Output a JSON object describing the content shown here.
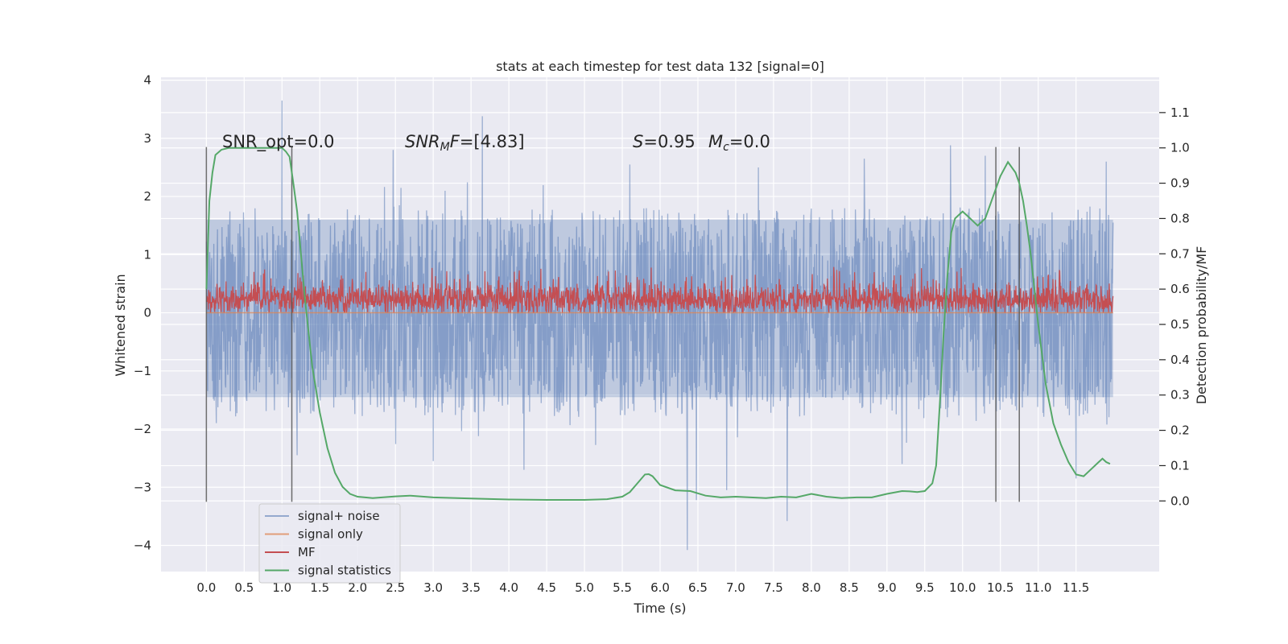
{
  "chart_data": {
    "type": "line",
    "title": "stats at each timestep for test data 132 [signal=0]",
    "xlabel": "Time (s)",
    "ylabel": "Whitened strain",
    "ylabel_right": "Detection probability/MF",
    "xlim": [
      -0.6,
      12.6
    ],
    "ylim": [
      -4.45,
      4.05
    ],
    "ylim_right": [
      -0.2,
      1.2
    ],
    "x_ticks": [
      0.0,
      0.5,
      1.0,
      1.5,
      2.0,
      2.5,
      3.0,
      3.5,
      4.0,
      4.5,
      5.0,
      5.5,
      6.0,
      6.5,
      7.0,
      7.5,
      8.0,
      8.5,
      9.0,
      9.5,
      10.0,
      10.5,
      11.0,
      11.5
    ],
    "x_tick_labels": [
      "0.0",
      "0.5",
      "1.0",
      "1.5",
      "2.0",
      "2.5",
      "3.0",
      "3.5",
      "4.0",
      "4.5",
      "5.0",
      "5.5",
      "6.0",
      "6.5",
      "7.0",
      "7.5",
      "8.0",
      "8.5",
      "9.0",
      "9.5",
      "10.0",
      "10.5",
      "11.0",
      "11.5"
    ],
    "y_ticks": [
      -4,
      -3,
      -2,
      -1,
      0,
      1,
      2,
      3,
      4
    ],
    "y_tick_labels": [
      "−4",
      "−3",
      "−2",
      "−1",
      "0",
      "1",
      "2",
      "3",
      "4"
    ],
    "y_right_ticks": [
      0.0,
      0.1,
      0.2,
      0.3,
      0.4,
      0.5,
      0.6,
      0.7,
      0.8,
      0.9,
      1.0,
      1.1
    ],
    "y_right_tick_labels": [
      "0.0",
      "0.1",
      "0.2",
      "0.3",
      "0.4",
      "0.5",
      "0.6",
      "0.7",
      "0.8",
      "0.9",
      "1.0",
      "1.1"
    ],
    "grid": true,
    "legend_position": "lower-left",
    "annotations": {
      "snr_opt": "SNR_opt=0.0",
      "snr_mf_base": "SNR",
      "snr_mf_sub": "M",
      "snr_mf_rest": "F=[4.83]",
      "s_label": "S",
      "s_value": "=0.95",
      "mc_label": "M",
      "mc_sub": "c",
      "mc_value": "=0.0"
    },
    "vertical_markers": [
      {
        "x": 0.0,
        "y_range": [
          -3.25,
          2.85
        ]
      },
      {
        "x": 1.13,
        "y_range": [
          -3.25,
          2.85
        ]
      },
      {
        "x": 10.44,
        "y_range": [
          -3.25,
          2.85
        ]
      },
      {
        "x": 10.75,
        "y_range": [
          -3.25,
          2.85
        ]
      }
    ],
    "series": [
      {
        "name": "signal+ noise",
        "color": "#4c72b0",
        "kind": "noise",
        "x_range": [
          0.0,
          11.99
        ],
        "band": [
          -1.45,
          1.6
        ],
        "spikes": [
          {
            "x": 1.0,
            "y": 3.65
          },
          {
            "x": 3.65,
            "y": 3.38
          },
          {
            "x": 6.36,
            "y": -4.08
          },
          {
            "x": 7.68,
            "y": -3.58
          },
          {
            "x": 6.48,
            "y": -3.22
          },
          {
            "x": 9.84,
            "y": 2.88
          },
          {
            "x": 2.47,
            "y": 2.8
          },
          {
            "x": 11.5,
            "y": -2.85
          },
          {
            "x": 6.88,
            "y": -3.05
          },
          {
            "x": 4.2,
            "y": -2.7
          },
          {
            "x": 5.6,
            "y": 2.55
          },
          {
            "x": 8.7,
            "y": 2.65
          },
          {
            "x": 10.3,
            "y": 2.7
          },
          {
            "x": 11.9,
            "y": 2.6
          },
          {
            "x": 3.0,
            "y": -2.55
          },
          {
            "x": 1.2,
            "y": -2.45
          },
          {
            "x": 9.2,
            "y": -2.6
          },
          {
            "x": 7.3,
            "y": 2.5
          }
        ],
        "seed": 132
      },
      {
        "name": "signal only",
        "color": "#dd8452",
        "kind": "flat",
        "x_range": [
          0.0,
          11.99
        ],
        "value": 0.0
      },
      {
        "name": "MF",
        "color": "#c44e52",
        "kind": "noise_mf",
        "x_range": [
          0.0,
          11.99
        ],
        "band": [
          0.02,
          0.45
        ],
        "seed": 77
      },
      {
        "name": "signal statistics",
        "color": "#55a868",
        "kind": "line",
        "axis": "right",
        "x": [
          0.0,
          0.04,
          0.08,
          0.12,
          0.2,
          0.3,
          0.5,
          0.7,
          0.9,
          1.0,
          1.05,
          1.1,
          1.15,
          1.2,
          1.25,
          1.3,
          1.35,
          1.4,
          1.5,
          1.6,
          1.7,
          1.8,
          1.9,
          2.0,
          2.2,
          2.5,
          2.7,
          3.0,
          3.5,
          4.0,
          4.5,
          5.0,
          5.3,
          5.5,
          5.6,
          5.7,
          5.8,
          5.85,
          5.9,
          6.0,
          6.2,
          6.4,
          6.6,
          6.8,
          7.0,
          7.2,
          7.4,
          7.6,
          7.8,
          8.0,
          8.2,
          8.4,
          8.6,
          8.8,
          9.0,
          9.2,
          9.3,
          9.4,
          9.5,
          9.6,
          9.65,
          9.7,
          9.75,
          9.8,
          9.85,
          9.9,
          9.95,
          10.0,
          10.05,
          10.1,
          10.15,
          10.2,
          10.3,
          10.4,
          10.5,
          10.6,
          10.7,
          10.75,
          10.8,
          10.85,
          10.9,
          10.95,
          11.0,
          11.1,
          11.2,
          11.3,
          11.4,
          11.5,
          11.6,
          11.7,
          11.8,
          11.85,
          11.9,
          11.95
        ],
        "values": [
          0.6,
          0.85,
          0.93,
          0.98,
          0.995,
          1.0,
          1.0,
          1.0,
          1.0,
          1.0,
          0.99,
          0.975,
          0.9,
          0.82,
          0.7,
          0.58,
          0.48,
          0.38,
          0.25,
          0.15,
          0.08,
          0.04,
          0.02,
          0.012,
          0.008,
          0.013,
          0.015,
          0.01,
          0.007,
          0.004,
          0.003,
          0.003,
          0.005,
          0.012,
          0.025,
          0.05,
          0.075,
          0.076,
          0.07,
          0.045,
          0.03,
          0.028,
          0.015,
          0.01,
          0.012,
          0.01,
          0.008,
          0.012,
          0.01,
          0.02,
          0.012,
          0.008,
          0.01,
          0.01,
          0.02,
          0.028,
          0.027,
          0.025,
          0.028,
          0.05,
          0.1,
          0.28,
          0.48,
          0.64,
          0.76,
          0.8,
          0.81,
          0.82,
          0.81,
          0.8,
          0.79,
          0.78,
          0.8,
          0.86,
          0.92,
          0.96,
          0.93,
          0.9,
          0.85,
          0.78,
          0.7,
          0.6,
          0.5,
          0.33,
          0.22,
          0.16,
          0.11,
          0.075,
          0.07,
          0.09,
          0.11,
          0.12,
          0.11,
          0.105
        ]
      }
    ]
  }
}
